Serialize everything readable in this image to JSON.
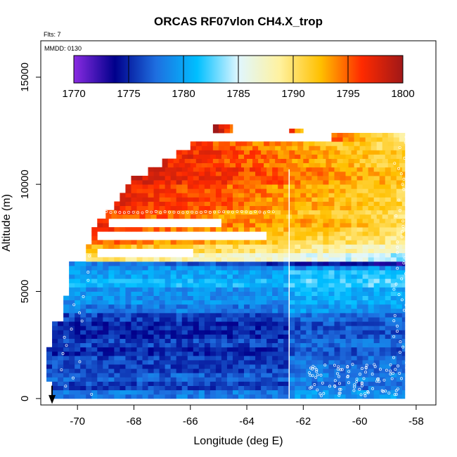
{
  "chart_data": {
    "type": "heatmap",
    "title": "ORCAS RF07vlon CH4.X_trop",
    "flights_label": "Flts: 7",
    "date_label": "MMDD: 0130",
    "xlabel": "Longitude (deg E)",
    "ylabel": "Altitude (m)",
    "xlim": [
      -71.3,
      -57.3
    ],
    "ylim": [
      -300,
      16700
    ],
    "xticks": [
      -70,
      -68,
      -66,
      -64,
      -62,
      -60,
      -58
    ],
    "yticks": [
      0,
      5000,
      10000,
      15000
    ],
    "colorbar": {
      "min": 1770,
      "max": 1800,
      "ticks": [
        1770,
        1775,
        1780,
        1785,
        1790,
        1795,
        1800
      ],
      "colors": [
        "#8a2be2",
        "#00008b",
        "#1e6fe0",
        "#00bfff",
        "#e0f7ff",
        "#fff2a0",
        "#ffc000",
        "#ff2a00",
        "#a01818"
      ]
    },
    "dive_longitude": -62.5,
    "arrow_longitude": -70.9,
    "layers": [
      {
        "alt": [
          0,
          400
        ],
        "lon": [
          -70.9,
          -58.4
        ],
        "value": 1778
      },
      {
        "alt": [
          400,
          800
        ],
        "lon": [
          -70.9,
          -58.4
        ],
        "value": 1776
      },
      {
        "alt": [
          800,
          1200
        ],
        "lon": [
          -71.1,
          -58.4
        ],
        "value": 1777
      },
      {
        "alt": [
          1200,
          1600
        ],
        "lon": [
          -71.1,
          -58.4
        ],
        "value": 1776
      },
      {
        "alt": [
          1600,
          2000
        ],
        "lon": [
          -71.1,
          -58.4
        ],
        "value": 1776
      },
      {
        "alt": [
          2000,
          2400
        ],
        "lon": [
          -71.1,
          -58.4
        ],
        "value": 1775
      },
      {
        "alt": [
          2400,
          2800
        ],
        "lon": [
          -70.9,
          -58.4
        ],
        "value": 1776
      },
      {
        "alt": [
          2800,
          3200
        ],
        "lon": [
          -70.9,
          -58.4
        ],
        "value": 1775
      },
      {
        "alt": [
          3200,
          3600
        ],
        "lon": [
          -70.9,
          -58.4
        ],
        "value": 1775
      },
      {
        "alt": [
          3600,
          4000
        ],
        "lon": [
          -70.5,
          -58.4
        ],
        "value": 1776
      },
      {
        "alt": [
          4000,
          4400
        ],
        "lon": [
          -70.5,
          -58.4
        ],
        "value": 1778
      },
      {
        "alt": [
          4400,
          4800
        ],
        "lon": [
          -70.5,
          -58.4
        ],
        "value": 1779
      },
      {
        "alt": [
          4800,
          5200
        ],
        "lon": [
          -70.3,
          -58.4
        ],
        "value": 1779
      },
      {
        "alt": [
          5200,
          5600
        ],
        "lon": [
          -70.3,
          -58.4
        ],
        "value": 1781
      },
      {
        "alt": [
          5600,
          6000
        ],
        "lon": [
          -70.3,
          -58.4
        ],
        "value": 1780
      },
      {
        "alt": [
          6000,
          6400
        ],
        "lon": [
          -70.3,
          -58.4
        ],
        "value": 1779
      },
      {
        "alt": [
          6400,
          6800
        ],
        "lon": [
          -69.7,
          -58.4
        ],
        "value": 1790
      },
      {
        "alt": [
          6800,
          7200
        ],
        "lon": [
          -69.7,
          -58.4
        ],
        "value": 1793
      },
      {
        "alt": [
          7200,
          7600
        ],
        "lon": [
          -69.5,
          -58.4
        ],
        "value": 1795
      },
      {
        "alt": [
          7600,
          8000
        ],
        "lon": [
          -69.5,
          -58.4
        ],
        "value": 1796
      },
      {
        "alt": [
          8000,
          8400
        ],
        "lon": [
          -69.3,
          -58.4
        ],
        "value": 1797
      },
      {
        "alt": [
          8400,
          8800
        ],
        "lon": [
          -69.0,
          -58.4
        ],
        "value": 1796
      },
      {
        "alt": [
          8800,
          9200
        ],
        "lon": [
          -68.7,
          -58.4
        ],
        "value": 1797
      },
      {
        "alt": [
          9200,
          9600
        ],
        "lon": [
          -68.5,
          -58.4
        ],
        "value": 1797
      },
      {
        "alt": [
          9600,
          10000
        ],
        "lon": [
          -68.3,
          -58.4
        ],
        "value": 1797
      },
      {
        "alt": [
          10000,
          10400
        ],
        "lon": [
          -68.1,
          -58.4
        ],
        "value": 1798
      },
      {
        "alt": [
          10400,
          10800
        ],
        "lon": [
          -67.5,
          -58.4
        ],
        "value": 1798
      },
      {
        "alt": [
          10800,
          11200
        ],
        "lon": [
          -67.0,
          -58.4
        ],
        "value": 1797
      },
      {
        "alt": [
          11200,
          11600
        ],
        "lon": [
          -66.5,
          -58.4
        ],
        "value": 1797
      },
      {
        "alt": [
          11600,
          12000
        ],
        "lon": [
          -66.0,
          -58.4
        ],
        "value": 1796
      },
      {
        "alt": [
          12000,
          12400
        ],
        "lon": [
          -61.0,
          -58.4
        ],
        "value": 1795
      },
      {
        "alt": [
          12400,
          12800
        ],
        "lon": [
          -65.2,
          -64.5
        ],
        "value": 1800
      },
      {
        "alt": [
          12400,
          12600
        ],
        "lon": [
          -62.5,
          -62.0
        ],
        "value": 1797
      }
    ],
    "gaps": [
      {
        "alt": [
          6500,
          7000
        ],
        "lon": [
          -69.4,
          -66.0
        ]
      },
      {
        "alt": [
          7300,
          7800
        ],
        "lon": [
          -69.3,
          -63.3
        ]
      },
      {
        "alt": [
          8000,
          8400
        ],
        "lon": [
          -69.0,
          -65.0
        ]
      }
    ]
  }
}
